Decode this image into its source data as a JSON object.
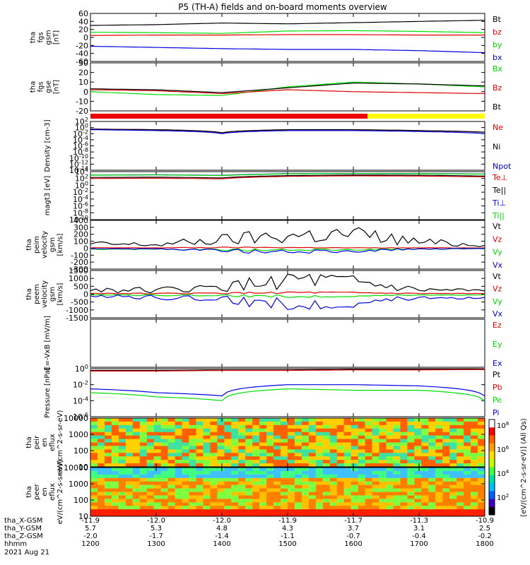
{
  "title": "P5 (TH-A) fields and on-board moments overview",
  "date": "2021 Aug 21",
  "time_axis": {
    "label": "hhmm",
    "ticks": [
      "1200",
      "1300",
      "1400",
      "1500",
      "1600",
      "1700",
      "1800"
    ],
    "range_hours": [
      12,
      18
    ]
  },
  "ephemeris": [
    {
      "label": "tha_X-GSM",
      "values": [
        "-11.9",
        "-12.0",
        "-12.0",
        "-11.9",
        "-11.7",
        "-11.3",
        "-10.9"
      ]
    },
    {
      "label": "tha_Y-GSM",
      "values": [
        "5.7",
        "5.3",
        "4.8",
        "4.3",
        "3.7",
        "3.1",
        "2.5"
      ]
    },
    {
      "label": "tha_Z-GSM",
      "values": [
        "-2.0",
        "-1.7",
        "-1.4",
        "-1.1",
        "-0.7",
        "-0.4",
        "-0.2"
      ]
    }
  ],
  "colors": {
    "black": "#000000",
    "red": "#e00000",
    "green": "#00dd00",
    "blue": "#0000e0",
    "yellow": "#ffff00"
  },
  "chart_data": [
    {
      "type": "line",
      "id": "fgs_gsm",
      "ylabel": "tha fgs gsm [nT]",
      "ylim": [
        -60,
        60
      ],
      "yticks": [
        "60",
        "40",
        "20",
        "0",
        "-20",
        "-40",
        "-60"
      ],
      "series": [
        {
          "name": "Bt",
          "color": "#000000",
          "x": [
            12,
            13,
            14,
            15,
            16,
            17,
            18
          ],
          "y": [
            30,
            32,
            36,
            34,
            37,
            40,
            43
          ]
        },
        {
          "name": "bz",
          "color": "#e00000",
          "x": [
            12,
            13,
            14,
            15,
            16,
            17,
            18
          ],
          "y": [
            5,
            6,
            6,
            7,
            7,
            6,
            6
          ]
        },
        {
          "name": "by",
          "color": "#00dd00",
          "x": [
            12,
            13,
            14,
            15,
            16,
            17,
            18
          ],
          "y": [
            13,
            12,
            10,
            16,
            17,
            15,
            12
          ]
        },
        {
          "name": "bx",
          "color": "#0000e0",
          "x": [
            12,
            13,
            14,
            15,
            16,
            17,
            18
          ],
          "y": [
            -22,
            -25,
            -28,
            -30,
            -30,
            -33,
            -38
          ]
        }
      ]
    },
    {
      "type": "line",
      "id": "fgs_gse",
      "ylabel": "tha fgs gse [nT]",
      "ylim": [
        -20,
        30
      ],
      "yticks": [
        "30",
        "20",
        "10",
        "0",
        "-10",
        "-20"
      ],
      "series": [
        {
          "name": "Bx",
          "color": "#00dd00",
          "x": [
            12,
            13,
            14,
            15,
            16,
            17,
            18
          ],
          "y": [
            0,
            -3,
            -4,
            5,
            10,
            8,
            5
          ]
        },
        {
          "name": "Bz",
          "color": "#e00000",
          "x": [
            12,
            13,
            14,
            15,
            16,
            17,
            18
          ],
          "y": [
            2,
            1,
            -2,
            2,
            0,
            -1,
            -2
          ]
        },
        {
          "name": "Bt",
          "color": "#000000",
          "x": [
            12,
            13,
            14,
            15,
            16,
            17,
            18
          ],
          "y": [
            3,
            2,
            -1,
            4,
            9,
            8,
            6
          ]
        }
      ]
    },
    {
      "type": "line",
      "id": "density",
      "ylabel": "Density [cm-3]",
      "scale": "log",
      "ylim": [
        1e-14,
        100.0
      ],
      "yticks": [
        "10^2",
        "10^0",
        "10^-2",
        "10^-4",
        "10^-6",
        "10^-8",
        "10^-10",
        "10^-12",
        "10^-14"
      ],
      "series": [
        {
          "name": "Ne",
          "color": "#e00000",
          "x": [
            12,
            13,
            14,
            15,
            16,
            17,
            18
          ],
          "y": [
            0.3,
            0.2,
            0.02,
            0.2,
            0.2,
            0.1,
            0.03
          ]
        },
        {
          "name": "Ni",
          "color": "#000000",
          "x": [
            12,
            13,
            14,
            15,
            16,
            17,
            18
          ],
          "y": [
            0.3,
            0.2,
            0.02,
            0.2,
            0.2,
            0.1,
            0.03
          ]
        },
        {
          "name": "Npot",
          "color": "#0000e0",
          "x": [
            12,
            13,
            14,
            15,
            16,
            17,
            18
          ],
          "y": [
            0.2,
            0.1,
            0.01,
            0.1,
            0.1,
            0.05,
            0.01
          ]
        }
      ]
    },
    {
      "type": "line",
      "id": "temperature",
      "ylabel": "magt3 [eV]",
      "scale": "log",
      "ylim": [
        1e-10,
        10000.0
      ],
      "yticks": [
        "10^4",
        "10^2",
        "10^0",
        "10^-2",
        "10^-4",
        "10^-6",
        "10^-8",
        "10^-10"
      ],
      "series": [
        {
          "name": "Te⊥",
          "color": "#e00000",
          "x": [
            12,
            13,
            14,
            15,
            16,
            17,
            18
          ],
          "y": [
            100,
            120,
            80,
            400,
            600,
            500,
            300
          ]
        },
        {
          "name": "Te||",
          "color": "#000000",
          "x": [
            12,
            13,
            14,
            15,
            16,
            17,
            18
          ],
          "y": [
            200,
            240,
            150,
            700,
            1000,
            900,
            500
          ]
        },
        {
          "name": "Ti⊥",
          "color": "#0000e0",
          "x": [
            12,
            13,
            14,
            15,
            16,
            17,
            18
          ],
          "y": [
            1000,
            1200,
            800,
            2500,
            3000,
            2800,
            2000
          ]
        },
        {
          "name": "Ti||",
          "color": "#00dd00",
          "x": [
            12,
            13,
            14,
            15,
            16,
            17,
            18
          ],
          "y": [
            900,
            1100,
            700,
            2200,
            2800,
            2500,
            1800
          ]
        }
      ]
    },
    {
      "type": "line",
      "id": "peim_velocity",
      "ylabel": "tha peim velocity gsm [km/s]",
      "ylim": [
        -300,
        400
      ],
      "yticks": [
        "400",
        "300",
        "200",
        "100",
        "0",
        "-100",
        "-200",
        "-300"
      ],
      "series": [
        {
          "name": "Vt",
          "color": "#000000",
          "x": [
            12,
            13,
            14,
            15,
            16,
            17,
            18
          ],
          "y": [
            60,
            50,
            120,
            180,
            200,
            90,
            40
          ]
        },
        {
          "name": "Vz",
          "color": "#e00000",
          "x": [
            12,
            13,
            14,
            15,
            16,
            17,
            18
          ],
          "y": [
            5,
            5,
            10,
            10,
            5,
            5,
            5
          ]
        },
        {
          "name": "Vy",
          "color": "#00dd00",
          "x": [
            12,
            13,
            14,
            15,
            16,
            17,
            18
          ],
          "y": [
            -10,
            -15,
            -20,
            -30,
            -20,
            -10,
            -10
          ]
        },
        {
          "name": "Vx",
          "color": "#0000e0",
          "x": [
            12,
            13,
            14,
            15,
            16,
            17,
            18
          ],
          "y": [
            -5,
            -10,
            -30,
            -60,
            -40,
            -10,
            -5
          ]
        }
      ]
    },
    {
      "type": "line",
      "id": "peem_velocity",
      "ylabel": "tha peem velocity gsm [km/s]",
      "ylim": [
        -1500,
        1500
      ],
      "yticks": [
        "1500",
        "1000",
        "500",
        "0",
        "-500",
        "-1000",
        "-1500"
      ],
      "series": [
        {
          "name": "Vt",
          "color": "#000000",
          "x": [
            12,
            13,
            14,
            15,
            16,
            17,
            18
          ],
          "y": [
            300,
            250,
            400,
            900,
            700,
            250,
            200
          ]
        },
        {
          "name": "Vz",
          "color": "#e00000",
          "x": [
            12,
            13,
            14,
            15,
            16,
            17,
            18
          ],
          "y": [
            50,
            40,
            60,
            100,
            80,
            40,
            30
          ]
        },
        {
          "name": "Vy",
          "color": "#00dd00",
          "x": [
            12,
            13,
            14,
            15,
            16,
            17,
            18
          ],
          "y": [
            -50,
            -60,
            -80,
            -150,
            -100,
            -50,
            -40
          ]
        },
        {
          "name": "Vx",
          "color": "#0000e0",
          "x": [
            12,
            13,
            14,
            15,
            16,
            17,
            18
          ],
          "y": [
            -150,
            -200,
            -300,
            -700,
            -500,
            -200,
            -200
          ]
        }
      ]
    },
    {
      "type": "line",
      "id": "efield",
      "ylabel": "E=-VxB [mV/m]",
      "legend": [
        {
          "name": "Ez",
          "color": "#e00000"
        },
        {
          "name": "Ey",
          "color": "#00dd00"
        },
        {
          "name": "Ex",
          "color": "#0000e0"
        }
      ],
      "series": []
    },
    {
      "type": "line",
      "id": "pressure",
      "ylabel": "Pressure [nPa]",
      "scale": "log",
      "ylim": [
        1e-06,
        1
      ],
      "yticks": [
        "10^0",
        "10^-2",
        "10^-4",
        "10^-6"
      ],
      "series": [
        {
          "name": "Pt",
          "color": "#000000",
          "x": [
            12,
            13,
            14,
            15,
            16,
            17,
            18
          ],
          "y": [
            0.6,
            0.6,
            0.7,
            0.7,
            0.8,
            0.8,
            0.8
          ]
        },
        {
          "name": "Pb",
          "color": "#e00000",
          "x": [
            12,
            13,
            14,
            15,
            16,
            17,
            18
          ],
          "y": [
            0.5,
            0.5,
            0.6,
            0.6,
            0.7,
            0.7,
            0.8
          ]
        },
        {
          "name": "Pe",
          "color": "#00dd00",
          "x": [
            12,
            13,
            14,
            15,
            16,
            17,
            18
          ],
          "y": [
            0.001,
            0.0003,
            0.0001,
            0.003,
            0.002,
            0.002,
            0.0001
          ]
        },
        {
          "name": "Pi",
          "color": "#0000e0",
          "x": [
            12,
            13,
            14,
            15,
            16,
            17,
            18
          ],
          "y": [
            0.003,
            0.001,
            0.0004,
            0.01,
            0.01,
            0.007,
            0.0004
          ]
        }
      ]
    },
    {
      "type": "heatmap",
      "id": "peir",
      "ylabel": "tha peir en eflux eV/(cm^2-s-sr-eV)",
      "scale": "log",
      "ylim": [
        5,
        25000
      ],
      "yticks": [
        "10000",
        "1000",
        "100",
        "10"
      ]
    },
    {
      "type": "heatmap",
      "id": "peer",
      "ylabel": "tha peer en eflux eV/(cm^2-s-sr-eV)",
      "scale": "log",
      "ylim": [
        5,
        25000
      ],
      "yticks": [
        "10000",
        "1000",
        "100",
        "10"
      ]
    }
  ],
  "colorbar": {
    "label": "[eV/(cm^2-s-sr-eV)] (All Qs)",
    "ticks": [
      "10^8",
      "10^6",
      "10^4",
      "10^2"
    ]
  }
}
